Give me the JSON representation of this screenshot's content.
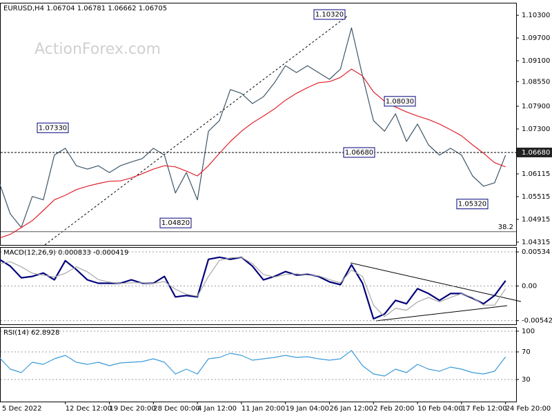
{
  "chart_data": [
    {
      "type": "line",
      "title": "EURUSD,H4  1.06704 1.06781 1.06662 1.06705",
      "watermark": "ActionForex.com",
      "ylim": [
        1.0424,
        1.1063
      ],
      "yticks": [
        {
          "value": 1.103,
          "label": "1.10300"
        },
        {
          "value": 1.097,
          "label": "1.09700"
        },
        {
          "value": 1.091,
          "label": "1.09100"
        },
        {
          "value": 1.0855,
          "label": "1.08550"
        },
        {
          "value": 1.079,
          "label": "1.07900"
        },
        {
          "value": 1.073,
          "label": "1.07300"
        },
        1.06115,
        1.05515,
        1.04915,
        1.04315
      ],
      "grid": false,
      "series": [
        {
          "color": "#3d5566",
          "values": [
            1.0588,
            1.0506,
            1.047,
            1.0552,
            1.0543,
            1.0661,
            1.0679,
            1.0633,
            1.0624,
            1.0633,
            1.0615,
            1.0633,
            1.0643,
            1.0652,
            1.0679,
            1.0661,
            1.0561,
            1.0615,
            1.0543,
            1.0724,
            1.0752,
            1.0834,
            1.0824,
            1.0797,
            1.0815,
            1.0852,
            1.0897,
            1.0879,
            1.0897,
            1.0879,
            1.0861,
            1.0888,
            1.0997,
            1.087,
            1.0752,
            1.0724,
            1.077,
            1.0697,
            1.0743,
            1.0688,
            1.0661,
            1.0679,
            1.0661,
            1.0606,
            1.0579,
            1.0588,
            1.0661
          ]
        },
        {
          "color": "#e0202a",
          "values": [
            1.0442,
            1.0452,
            1.047,
            1.0488,
            1.0515,
            1.0543,
            1.0555,
            1.057,
            1.0579,
            1.0586,
            1.0592,
            1.0593,
            1.0601,
            1.0612,
            1.0624,
            1.0633,
            1.063,
            1.0619,
            1.0606,
            1.0633,
            1.0666,
            1.0697,
            1.0724,
            1.0746,
            1.0764,
            1.0783,
            1.0806,
            1.0824,
            1.0839,
            1.0852,
            1.0855,
            1.0866,
            1.0888,
            1.087,
            1.0828,
            1.0803,
            1.0788,
            1.0775,
            1.0764,
            1.0755,
            1.0743,
            1.0728,
            1.0712,
            1.0688,
            1.0666,
            1.0641,
            1.063
          ]
        }
      ],
      "annotations": [
        {
          "label": "1.10320",
          "value": 1.1032
        },
        {
          "label": "1.07330",
          "value": 1.0733
        },
        {
          "label": "1.04820",
          "value": 1.0482
        },
        {
          "label": "1.06680",
          "value": 1.0668
        },
        {
          "label": "1.08030",
          "value": 1.0803
        },
        {
          "label": "1.05320",
          "value": 1.0532
        }
      ],
      "current_price": {
        "value": 1.0668,
        "label": "1.06680"
      },
      "fibonacci": {
        "ratio": 38.2,
        "price": 1.0459
      }
    },
    {
      "type": "line",
      "title": "MACD(12,26,9) 0.000833 -0.000419",
      "ylim": [
        -0.006,
        0.0061
      ],
      "yticks": [
        0.00534,
        {
          "value": 0,
          "label": "0.00"
        },
        -0.005421
      ],
      "grid": true,
      "series": [
        {
          "color": "#00007a",
          "values": [
            0.00418,
            0.00311,
            0.00128,
            0.0015,
            0.00203,
            0.00096,
            0.00396,
            0.00257,
            0.00096,
            0.00043,
            0.00043,
            0.00043,
            0.00096,
            0.00043,
            0.00043,
            0.0015,
            -0.00171,
            -0.0015,
            -0.00171,
            0.00418,
            0.0045,
            0.00418,
            0.0045,
            0.00311,
            0.00096,
            0.0015,
            0.00225,
            0.00171,
            0.00182,
            0.0015,
            0.00064,
            0.00021,
            0.00332,
            0.00043,
            -0.00514,
            -0.00439,
            -0.00225,
            -0.00278,
            -0.00043,
            -0.00118,
            -0.00225,
            -0.00118,
            -0.00118,
            -0.00193,
            -0.00278,
            -0.0015,
            0.00083
          ]
        },
        {
          "color": "#a8a8a8",
          "values": [
            0.0035,
            0.0038,
            0.003,
            0.002,
            0.0017,
            0.0014,
            0.002,
            0.003,
            0.0022,
            0.001,
            0.0006,
            0.0004,
            0.0005,
            0.0005,
            0.0004,
            0.0007,
            -0.0005,
            -0.0013,
            -0.0016,
            0.0015,
            0.004,
            0.0044,
            0.0045,
            0.0035,
            0.0018,
            0.0014,
            0.0018,
            0.0019,
            0.0017,
            0.0016,
            0.001,
            0.0005,
            0.0025,
            0.0015,
            -0.003,
            -0.0048,
            -0.0035,
            -0.0038,
            -0.0025,
            -0.0018,
            -0.0025,
            -0.0018,
            -0.0012,
            -0.0018,
            -0.003,
            -0.003,
            -0.00042
          ]
        }
      ]
    },
    {
      "type": "line",
      "title": "RSI(14) 62.8928",
      "ylim": [
        -2,
        106
      ],
      "yticks": [
        100,
        70,
        30
      ],
      "grid": true,
      "series": [
        {
          "color": "#3a9ad9",
          "values": [
            62,
            45,
            40,
            55,
            52,
            60,
            65,
            55,
            52,
            55,
            50,
            54,
            55,
            56,
            60,
            55,
            38,
            45,
            38,
            60,
            62,
            68,
            65,
            58,
            60,
            62,
            65,
            62,
            63,
            60,
            58,
            60,
            72,
            50,
            38,
            35,
            45,
            40,
            52,
            45,
            42,
            48,
            45,
            40,
            38,
            42,
            62.89
          ]
        }
      ],
      "categories": [
        "5 Dec 2022",
        null,
        null,
        null,
        null,
        null,
        "12 Dec 12:00",
        null,
        null,
        null,
        "19 Dec 20:00",
        null,
        null,
        null,
        "28 Dec 00:00",
        null,
        null,
        null,
        "4 Jan 12:00",
        null,
        null,
        null,
        "11 Jan 20:00",
        null,
        null,
        null,
        "19 Jan 04:00",
        null,
        null,
        null,
        "26 Jan 12:00",
        null,
        null,
        null,
        "2 Feb 20:00",
        null,
        null,
        null,
        "10 Feb 04:00",
        null,
        null,
        null,
        "17 Feb 12:00",
        null,
        null,
        null,
        "24 Feb 20:00"
      ]
    }
  ]
}
